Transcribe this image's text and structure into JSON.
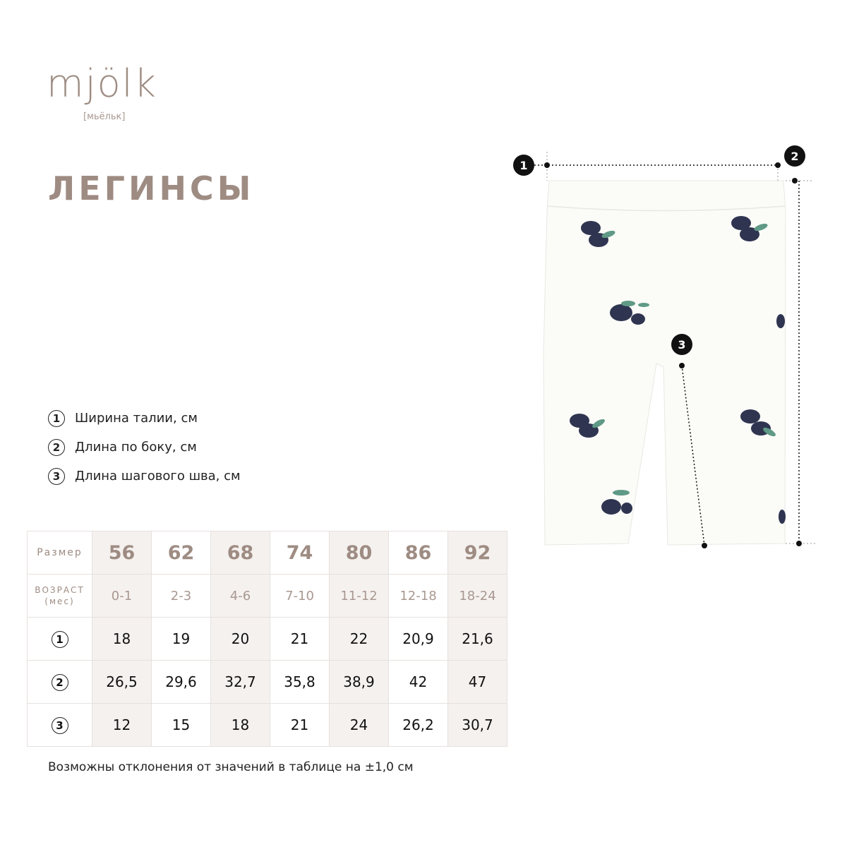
{
  "brand": {
    "logo": "mjölk",
    "logo_sub": "[мьёльк]"
  },
  "title": "ЛЕГИНСЫ",
  "legend": [
    {
      "num": "1",
      "label": "Ширина талии, см"
    },
    {
      "num": "2",
      "label": "Длина по боку, см"
    },
    {
      "num": "3",
      "label": "Длина шагового шва, см"
    }
  ],
  "table": {
    "size_label": "Размер",
    "age_label_1": "ВОЗРАСТ",
    "age_label_2": "(мес)",
    "sizes": [
      "56",
      "62",
      "68",
      "74",
      "80",
      "86",
      "92"
    ],
    "ages": [
      "0-1",
      "2-3",
      "4-6",
      "7-10",
      "11-12",
      "12-18",
      "18-24"
    ],
    "rows": [
      {
        "num": "1",
        "values": [
          "18",
          "19",
          "20",
          "21",
          "22",
          "20,9",
          "21,6"
        ]
      },
      {
        "num": "2",
        "values": [
          "26,5",
          "29,6",
          "32,7",
          "35,8",
          "38,9",
          "42",
          "47"
        ]
      },
      {
        "num": "3",
        "values": [
          "12",
          "15",
          "18",
          "21",
          "24",
          "26,2",
          "30,7"
        ]
      }
    ]
  },
  "note": "Возможны отклонения от значений в таблице на ±1,0 см",
  "markers": [
    "1",
    "2",
    "3"
  ],
  "colors": {
    "brand": "#9e8c83",
    "shade": "#f5f1ef",
    "berry": "#2f3550",
    "leaf": "#5f9a86"
  }
}
